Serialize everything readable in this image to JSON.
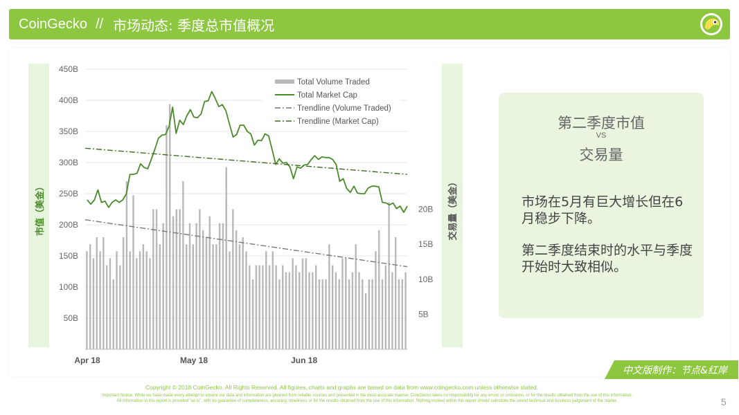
{
  "header": {
    "brand": "CoinGecko",
    "separator": "//",
    "title": "市场动态: 季度总市值概况",
    "logo_icon": "gecko-logo-icon"
  },
  "colors": {
    "brand_green": "#8dc63f",
    "market_cap_line": "#4a8a2a",
    "volume_bar": "#b8b8b8",
    "trend_volume": "#777777",
    "trend_market": "#3d6b22",
    "axis_band": "#e8f5de"
  },
  "chart_data": {
    "type": "line",
    "title": "",
    "ylabel_left": "市值（美金）",
    "ylabel_right": "交易量（美金）",
    "x_tick_labels": [
      "Apr 18",
      "May 18",
      "Jun 18"
    ],
    "x_tick_index": [
      0,
      30,
      61
    ],
    "y_left_ticks": [
      "450B",
      "400B",
      "350B",
      "300B",
      "250B",
      "200B",
      "150B",
      "100B",
      "50B"
    ],
    "y_left_range": [
      0,
      450
    ],
    "y_right_ticks": [
      "20B",
      "15B",
      "10B",
      "5B"
    ],
    "y_right_range": [
      0,
      40
    ],
    "legend_position": "top-right",
    "legend": [
      "Total Volume Traded",
      "Total Market Cap",
      "Trendline (Volume Traded)",
      "Trendline (Market Cap)"
    ],
    "series": [
      {
        "name": "Total Market Cap",
        "unit": "B",
        "values": [
          240,
          233,
          240,
          256,
          236,
          238,
          228,
          236,
          240,
          236,
          240,
          250,
          281,
          281,
          283,
          298,
          292,
          290,
          305,
          321,
          339,
          344,
          345,
          358,
          389,
          347,
          368,
          361,
          375,
          385,
          373,
          372,
          378,
          398,
          399,
          414,
          403,
          390,
          393,
          383,
          362,
          341,
          345,
          360,
          360,
          350,
          346,
          328,
          336,
          335,
          346,
          343,
          321,
          297,
          306,
          299,
          300,
          293,
          274,
          293,
          291,
          296,
          297,
          305,
          311,
          305,
          309,
          308,
          308,
          305,
          297,
          270,
          274,
          258,
          252,
          262,
          251,
          250,
          250,
          259,
          262,
          262,
          261,
          236,
          235,
          232,
          235,
          226,
          230,
          220,
          230
        ]
      },
      {
        "name": "Total Volume Traded",
        "unit": "B",
        "values": [
          14,
          15,
          13,
          16,
          14,
          16,
          12,
          13,
          10,
          14,
          12,
          16,
          24,
          14,
          22,
          13,
          14,
          15,
          14,
          13,
          20,
          20,
          15,
          18,
          32,
          35,
          19,
          20,
          20,
          24,
          15,
          18,
          15,
          18,
          20,
          17,
          16,
          19,
          15,
          15,
          18,
          18,
          26,
          14,
          20,
          17,
          15,
          16,
          14,
          12,
          10,
          12,
          12,
          12,
          14,
          12,
          14,
          12,
          10,
          12,
          11,
          11,
          13,
          12,
          11,
          13,
          13,
          11,
          11,
          12,
          10,
          10,
          10,
          15,
          12,
          11,
          10,
          13,
          13,
          10,
          11,
          15,
          11,
          10,
          8,
          10,
          10,
          14,
          17,
          10,
          12,
          21,
          11,
          16,
          10,
          10,
          11
        ]
      },
      {
        "name": "Trendline (Volume Traded)",
        "unit": "B",
        "values": [
          18.5,
          11.8
        ]
      },
      {
        "name": "Trendline (Market Cap)",
        "unit": "B",
        "values": [
          323,
          281
        ]
      }
    ]
  },
  "info": {
    "heading_top": "第二季度市值",
    "heading_vs": "VS",
    "heading_bottom": "交易量",
    "paragraph1": "市场在5月有巨大增长但在6月稳步下降。",
    "paragraph2": "第二季度结束时的水平与季度开始时大致相似。"
  },
  "credit": "中文版制作：节点&红岸",
  "footer": {
    "copyright": "Copyright © 2018 CoinGecko. All Rights Reserved. All figures, charts and graphs are based on data from www.coingecko.com unless otherwise stated.",
    "notice": "Important Notice: While we have made every attempt to ensure our data and information are gleaned from reliable sources and presented in the most accurate manner, CoinGecko takes no responsibility for any errors or omissions, or for the results obtained from the use of this information.",
    "disclaimer": "All information in this report is provided \"as is\", with no guarantee of completeness, accuracy, timeliness or for the results obtained from the use of this information. Nothing implied within this report should substitute the sound technical and business judgement of the reader.",
    "page_number": "5"
  }
}
